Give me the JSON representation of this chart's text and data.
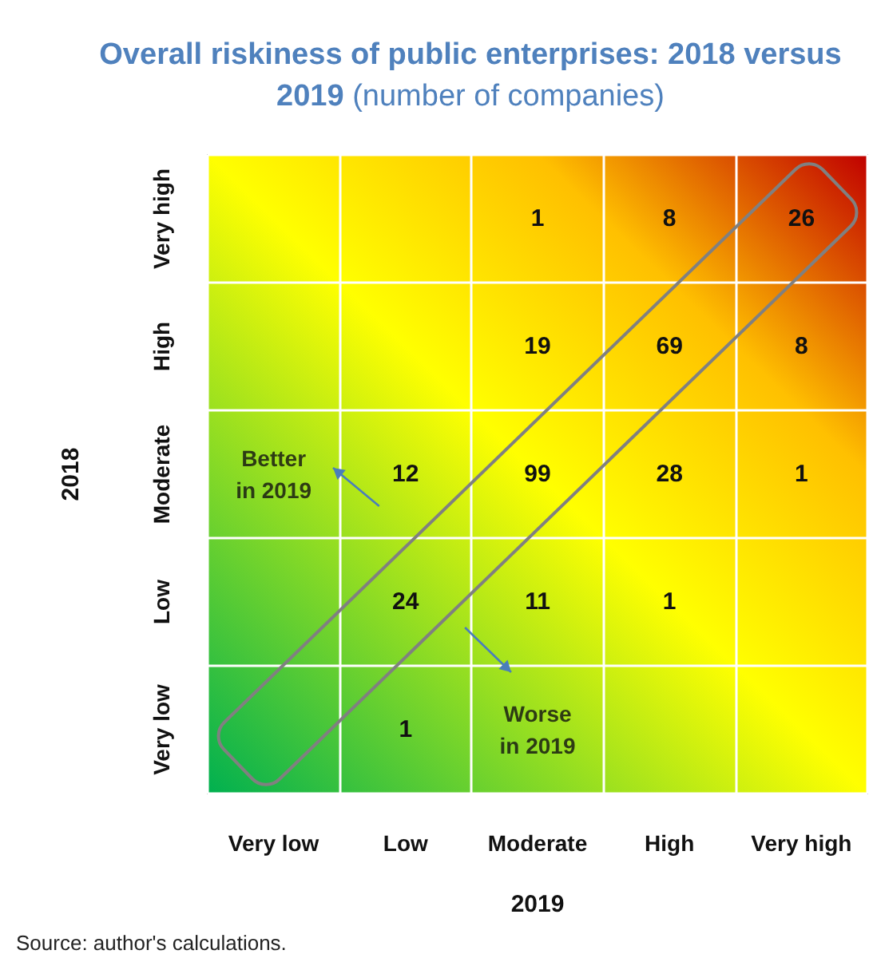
{
  "chart_data": {
    "type": "heatmap",
    "title": "Overall riskiness of public enterprises: 2018 versus 2019",
    "subtitle": "(number of companies)",
    "xlabel": "2019",
    "ylabel": "2018",
    "categories": [
      "Very low",
      "Low",
      "Moderate",
      "High",
      "Very high"
    ],
    "y_categories": [
      "Very high",
      "High",
      "Moderate",
      "Low",
      "Very low"
    ],
    "cells": [
      [
        null,
        null,
        1,
        8,
        26
      ],
      [
        null,
        null,
        19,
        69,
        8
      ],
      [
        null,
        12,
        99,
        28,
        1
      ],
      [
        null,
        24,
        11,
        1,
        null
      ],
      [
        null,
        1,
        null,
        null,
        null
      ]
    ],
    "grid": true,
    "data_labels": true,
    "annotations": [
      "Better\nin 2019",
      "Worse\nin 2019",
      "Source: author's calculations."
    ]
  }
}
